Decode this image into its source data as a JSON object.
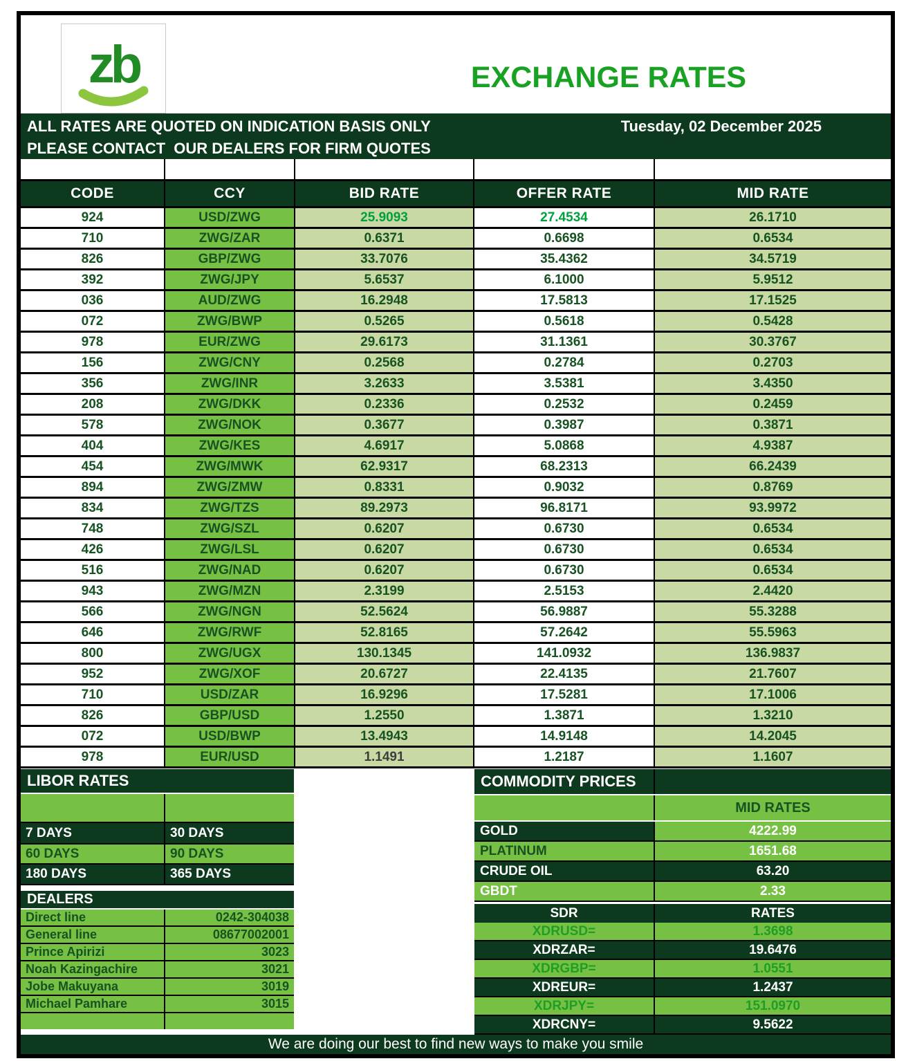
{
  "header": {
    "logo_text": "zb",
    "title": "EXCHANGE RATES"
  },
  "banner": {
    "line1": "ALL RATES ARE QUOTED ON INDICATION BASIS ONLY",
    "line2": "PLEASE CONTACT  OUR DEALERS FOR FIRM QUOTES",
    "date": "Tuesday, 02 December 2025"
  },
  "rates": {
    "columns": [
      "CODE",
      "CCY",
      "BID RATE",
      "OFFER RATE",
      "MID RATE"
    ],
    "rows": [
      {
        "code": "924",
        "ccy": "USD/ZWG",
        "bid": "25.9093",
        "offer": "27.4534",
        "mid": "26.1710",
        "bid_accent": "bright",
        "offer_accent": "bright"
      },
      {
        "code": "710",
        "ccy": "ZWG/ZAR",
        "bid": "0.6371",
        "offer": "0.6698",
        "mid": "0.6534"
      },
      {
        "code": "826",
        "ccy": "GBP/ZWG",
        "bid": "33.7076",
        "offer": "35.4362",
        "mid": "34.5719"
      },
      {
        "code": "392",
        "ccy": "ZWG/JPY",
        "bid": "5.6537",
        "offer": "6.1000",
        "mid": "5.9512"
      },
      {
        "code": "036",
        "ccy": "AUD/ZWG",
        "bid": "16.2948",
        "offer": "17.5813",
        "mid": "17.1525"
      },
      {
        "code": "072",
        "ccy": "ZWG/BWP",
        "bid": "0.5265",
        "offer": "0.5618",
        "mid": "0.5428"
      },
      {
        "code": "978",
        "ccy": "EUR/ZWG",
        "bid": "29.6173",
        "offer": "31.1361",
        "mid": "30.3767"
      },
      {
        "code": "156",
        "ccy": "ZWG/CNY",
        "bid": "0.2568",
        "offer": "0.2784",
        "mid": "0.2703"
      },
      {
        "code": "356",
        "ccy": "ZWG/INR",
        "bid": "3.2633",
        "offer": "3.5381",
        "mid": "3.4350"
      },
      {
        "code": "208",
        "ccy": "ZWG/DKK",
        "bid": "0.2336",
        "offer": "0.2532",
        "mid": "0.2459"
      },
      {
        "code": "578",
        "ccy": "ZWG/NOK",
        "bid": "0.3677",
        "offer": "0.3987",
        "mid": "0.3871"
      },
      {
        "code": "404",
        "ccy": "ZWG/KES",
        "bid": "4.6917",
        "offer": "5.0868",
        "mid": "4.9387"
      },
      {
        "code": "454",
        "ccy": "ZWG/MWK",
        "bid": "62.9317",
        "offer": "68.2313",
        "mid": "66.2439"
      },
      {
        "code": "894",
        "ccy": "ZWG/ZMW",
        "bid": "0.8331",
        "offer": "0.9032",
        "mid": "0.8769"
      },
      {
        "code": "834",
        "ccy": "ZWG/TZS",
        "bid": "89.2973",
        "offer": "96.8171",
        "mid": "93.9972"
      },
      {
        "code": "748",
        "ccy": "ZWG/SZL",
        "bid": "0.6207",
        "offer": "0.6730",
        "mid": "0.6534"
      },
      {
        "code": "426",
        "ccy": "ZWG/LSL",
        "bid": "0.6207",
        "offer": "0.6730",
        "mid": "0.6534"
      },
      {
        "code": "516",
        "ccy": "ZWG/NAD",
        "bid": "0.6207",
        "offer": "0.6730",
        "mid": "0.6534"
      },
      {
        "code": "943",
        "ccy": "ZWG/MZN",
        "bid": "2.3199",
        "offer": "2.5153",
        "mid": "2.4420"
      },
      {
        "code": "566",
        "ccy": "ZWG/NGN",
        "bid": "52.5624",
        "offer": "56.9887",
        "mid": "55.3288"
      },
      {
        "code": "646",
        "ccy": "ZWG/RWF",
        "bid": "52.8165",
        "offer": "57.2642",
        "mid": "55.5963"
      },
      {
        "code": "800",
        "ccy": "ZWG/UGX",
        "bid": "130.1345",
        "offer": "141.0932",
        "mid": "136.9837"
      },
      {
        "code": "952",
        "ccy": "ZWG/XOF",
        "bid": "20.6727",
        "offer": "22.4135",
        "mid": "21.7607"
      },
      {
        "code": "710",
        "ccy": "USD/ZAR",
        "bid": "16.9296",
        "offer": "17.5281",
        "mid": "17.1006"
      },
      {
        "code": "826",
        "ccy": "GBP/USD",
        "bid": "1.2550",
        "offer": "1.3871",
        "mid": "1.3210"
      },
      {
        "code": "072",
        "ccy": "USD/BWP",
        "bid": "13.4943",
        "offer": "14.9148",
        "mid": "14.2045"
      },
      {
        "code": "978",
        "ccy": "EUR/USD",
        "bid": "1.1491",
        "offer": "1.2187",
        "mid": "1.1607",
        "bid_accent": "muted"
      }
    ]
  },
  "libor": {
    "title": "LIBOR RATES",
    "cells": [
      {
        "label": "",
        "variant": "blank"
      },
      {
        "label": "",
        "variant": "blank"
      },
      {
        "label": "7 DAYS",
        "variant": "dark"
      },
      {
        "label": "30 DAYS",
        "variant": "dark"
      },
      {
        "label": "60 DAYS",
        "variant": "bright"
      },
      {
        "label": "90 DAYS",
        "variant": "bright"
      },
      {
        "label": "180 DAYS",
        "variant": "dark"
      },
      {
        "label": "365 DAYS",
        "variant": "dark"
      }
    ]
  },
  "dealers": {
    "title": "DEALERS",
    "rows": [
      {
        "name": "Direct line",
        "value": "0242-304038"
      },
      {
        "name": "General line",
        "value": "08677002001"
      },
      {
        "name": "Prince Apirizi",
        "value": "3023"
      },
      {
        "name": "Noah Kazingachire",
        "value": "3021"
      },
      {
        "name": "Jobe Makuyana",
        "value": "3019"
      },
      {
        "name": "Michael Pamhare",
        "value": "3015"
      },
      {
        "name": "",
        "value": ""
      }
    ]
  },
  "commodities": {
    "title": "COMMODITY PRICES",
    "value_header": "MID RATES",
    "rows": [
      {
        "name": "GOLD",
        "value": "4222.99",
        "name_variant": "dark",
        "value_variant": "bright"
      },
      {
        "name": "PLATINUM",
        "value": "1651.68",
        "name_variant": "bright-darktext",
        "value_variant": "bright"
      },
      {
        "name": "CRUDE OIL",
        "value": "63.20",
        "name_variant": "dark",
        "value_variant": "dark"
      },
      {
        "name": "GBDT",
        "value": "2.33",
        "name_variant": "bright",
        "value_variant": "bright"
      }
    ]
  },
  "sdr": {
    "col_name": "SDR",
    "col_rate": "RATES",
    "rows": [
      {
        "name": "XDRUSD=",
        "value": "1.3698",
        "variant": "bright"
      },
      {
        "name": "XDRZAR=",
        "value": "19.6476",
        "variant": "dark"
      },
      {
        "name": "XDRGBP=",
        "value": "1.0551",
        "variant": "bright"
      },
      {
        "name": "XDREUR=",
        "value": "1.2437",
        "variant": "dark"
      },
      {
        "name": "XDRJPY=",
        "value": "151.0970",
        "variant": "bright"
      },
      {
        "name": "XDRCNY=",
        "value": "9.5622",
        "variant": "dark"
      }
    ]
  },
  "footer": {
    "text": "We are doing our best to find new ways to make you smile"
  },
  "colors": {
    "dark_green": "#0d3a1e",
    "bright_green": "#76c043",
    "sage": "#c9d9a4",
    "text_green": "#175322",
    "accent_bright": "#00a13c",
    "muted_gray": "#3d3d3d",
    "title_green": "#18a122",
    "logo_green": "#218b25",
    "swoosh_green": "#8cc63f",
    "sdr_green": "#1f9e26"
  }
}
